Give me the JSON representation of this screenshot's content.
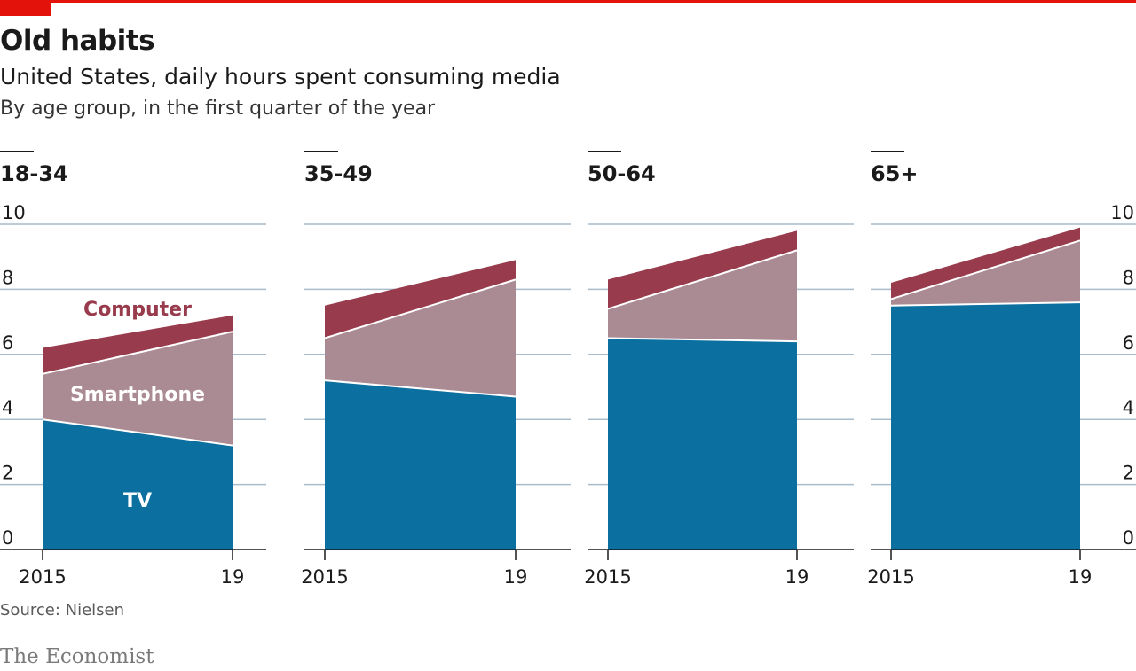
{
  "header": {
    "title": "Old habits",
    "subtitle": "United States, daily hours spent consuming media",
    "subsubtitle": "By age group, in the first quarter of the year"
  },
  "footer": {
    "source": "Source: Nielsen",
    "brand": "The Economist"
  },
  "colors": {
    "tv": "#0b6fa0",
    "smartphone": "#aa8b93",
    "computer": "#983b4c",
    "grid": "#a9bccb",
    "accent": "#e3120b"
  },
  "chart_data": {
    "type": "area",
    "stacked": true,
    "x": [
      "2015",
      "19"
    ],
    "ylim": [
      0,
      10
    ],
    "yticks": [
      "0",
      "2",
      "4",
      "6",
      "8",
      "10"
    ],
    "grid": true,
    "series_labels": [
      "Computer",
      "Smartphone",
      "TV"
    ],
    "panels": [
      {
        "label": "18-34",
        "tv": [
          4.0,
          3.2
        ],
        "smartphone": [
          1.4,
          3.5
        ],
        "computer": [
          0.8,
          0.5
        ]
      },
      {
        "label": "35-49",
        "tv": [
          5.2,
          4.7
        ],
        "smartphone": [
          1.3,
          3.6
        ],
        "computer": [
          1.0,
          0.6
        ]
      },
      {
        "label": "50-64",
        "tv": [
          6.5,
          6.4
        ],
        "smartphone": [
          0.9,
          2.8
        ],
        "computer": [
          0.9,
          0.6
        ]
      },
      {
        "label": "65+",
        "tv": [
          7.5,
          7.6
        ],
        "smartphone": [
          0.2,
          1.9
        ],
        "computer": [
          0.5,
          0.4
        ]
      }
    ]
  }
}
